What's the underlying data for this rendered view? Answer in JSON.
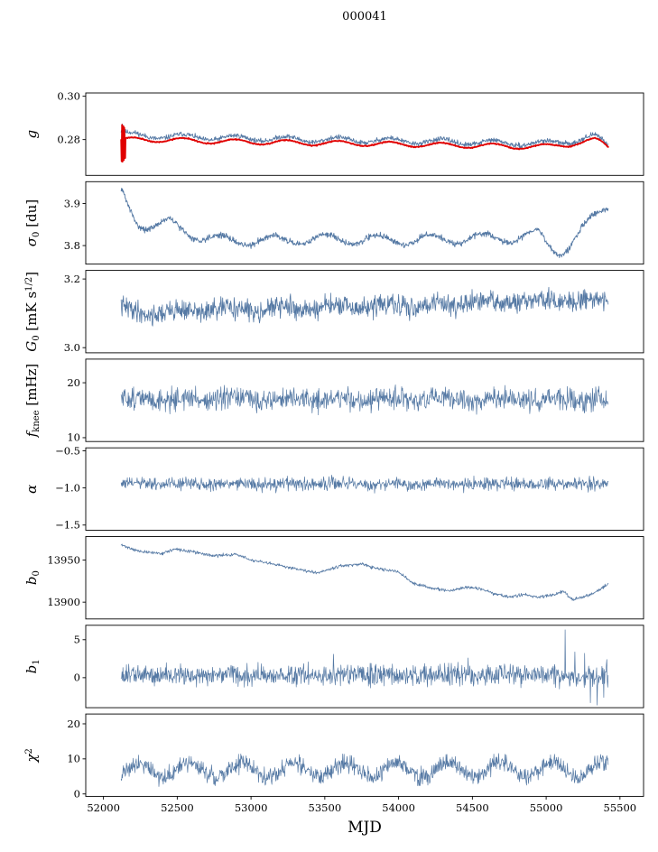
{
  "chart_data": {
    "type": "line",
    "title": "000041",
    "xlabel": "MJD",
    "xlim": [
      51880,
      55660
    ],
    "xticks": [
      52000,
      52500,
      53000,
      53500,
      54000,
      54500,
      55000,
      55500
    ],
    "x_start": 52120,
    "x_end": 55420,
    "samples": 1100,
    "legend": "none",
    "grid": false,
    "colors": {
      "data_line": "#5579a4",
      "overlay_line": "#e00000",
      "axis": "#000000"
    },
    "panels": [
      {
        "id": "g",
        "ylabel_parts": [
          {
            "t": "g",
            "style": "italic"
          }
        ],
        "ylim": [
          0.2635,
          0.3015
        ],
        "yticks": [
          {
            "v": 0.28,
            "label": "0.28"
          },
          {
            "v": 0.3,
            "label": "0.30"
          }
        ],
        "series": [
          {
            "name": "gain",
            "color": "#5579a4",
            "width": 0.9,
            "seed": 11,
            "noise": 0.00055,
            "osc": {
              "amp": 0.0012,
              "period": 350,
              "phase": 0.3
            },
            "base": [
              [
                52120,
                0.2838
              ],
              [
                52160,
                0.2824
              ],
              [
                52250,
                0.2818
              ],
              [
                52400,
                0.2816
              ],
              [
                52600,
                0.2812
              ],
              [
                52800,
                0.2808
              ],
              [
                53000,
                0.2806
              ],
              [
                53200,
                0.2803
              ],
              [
                53400,
                0.28
              ],
              [
                53600,
                0.2799
              ],
              [
                53800,
                0.2797
              ],
              [
                54000,
                0.2794
              ],
              [
                54200,
                0.2792
              ],
              [
                54400,
                0.2789
              ],
              [
                54600,
                0.2786
              ],
              [
                54800,
                0.2783
              ],
              [
                54950,
                0.2782
              ],
              [
                55050,
                0.2785
              ],
              [
                55150,
                0.2793
              ],
              [
                55250,
                0.2805
              ],
              [
                55330,
                0.2812
              ],
              [
                55380,
                0.2795
              ],
              [
                55420,
                0.2775
              ]
            ],
            "spikes": [
              [
                52128,
                0.2872
              ],
              [
                52136,
                0.286
              ]
            ]
          },
          {
            "name": "gain-smoothed",
            "color": "#e00000",
            "width": 1.8,
            "seed": 21,
            "noise": 0.00012,
            "osc": {
              "amp": 0.0011,
              "period": 350,
              "phase": 0.3
            },
            "base": [
              [
                52120,
                0.2798
              ],
              [
                52250,
                0.28
              ],
              [
                52400,
                0.2799
              ],
              [
                52600,
                0.2795
              ],
              [
                52800,
                0.2791
              ],
              [
                53000,
                0.2789
              ],
              [
                53200,
                0.2787
              ],
              [
                53400,
                0.2784
              ],
              [
                53600,
                0.2783
              ],
              [
                53800,
                0.2781
              ],
              [
                54000,
                0.2778
              ],
              [
                54200,
                0.2776
              ],
              [
                54400,
                0.2773
              ],
              [
                54600,
                0.2771
              ],
              [
                54800,
                0.2768
              ],
              [
                54950,
                0.2767
              ],
              [
                55050,
                0.277
              ],
              [
                55150,
                0.2778
              ],
              [
                55250,
                0.279
              ],
              [
                55330,
                0.2798
              ],
              [
                55380,
                0.2782
              ],
              [
                55420,
                0.2764
              ]
            ],
            "spikes": [
              [
                52122,
                0.27
              ],
              [
                52126,
                0.2868
              ],
              [
                52130,
                0.2698
              ],
              [
                52134,
                0.2862
              ],
              [
                52138,
                0.2705
              ],
              [
                52142,
                0.2855
              ],
              [
                52146,
                0.2715
              ]
            ]
          }
        ]
      },
      {
        "id": "sigma0",
        "ylabel_parts": [
          {
            "t": "σ",
            "style": "italic"
          },
          {
            "t": "0",
            "script": "sub"
          },
          {
            "t": " [du]"
          }
        ],
        "ylim": [
          3.756,
          3.952
        ],
        "yticks": [
          {
            "v": 3.8,
            "label": "3.8"
          },
          {
            "v": 3.9,
            "label": "3.9"
          }
        ],
        "series": [
          {
            "name": "sigma0",
            "color": "#5579a4",
            "width": 0.9,
            "seed": 31,
            "noise": 0.0035,
            "osc": {
              "amp": 0.012,
              "period": 355,
              "phase": 2.19
            },
            "base": [
              [
                52120,
                3.928
              ],
              [
                52160,
                3.9
              ],
              [
                52220,
                3.862
              ],
              [
                52300,
                3.846
              ],
              [
                52380,
                3.848
              ],
              [
                52450,
                3.852
              ],
              [
                52530,
                3.84
              ],
              [
                52650,
                3.822
              ],
              [
                52800,
                3.812
              ],
              [
                53000,
                3.812
              ],
              [
                53300,
                3.814
              ],
              [
                53600,
                3.816
              ],
              [
                53900,
                3.813
              ],
              [
                54200,
                3.814
              ],
              [
                54500,
                3.817
              ],
              [
                54800,
                3.819
              ],
              [
                54950,
                3.827
              ],
              [
                55020,
                3.8
              ],
              [
                55080,
                3.786
              ],
              [
                55150,
                3.798
              ],
              [
                55250,
                3.838
              ],
              [
                55340,
                3.872
              ],
              [
                55420,
                3.898
              ]
            ]
          }
        ]
      },
      {
        "id": "noise-G",
        "ylabel_parts": [
          {
            "t": "G",
            "style": "italic"
          },
          {
            "t": "0",
            "script": "sub"
          },
          {
            "t": " [mK s"
          },
          {
            "t": "1/2",
            "script": "sup"
          },
          {
            "t": "]"
          }
        ],
        "ylim": [
          2.985,
          3.225
        ],
        "yticks": [
          {
            "v": 3.0,
            "label": "3.0"
          },
          {
            "v": 3.2,
            "label": "3.2"
          }
        ],
        "series": [
          {
            "name": "white-noise",
            "color": "#5579a4",
            "width": 0.8,
            "seed": 41,
            "noise": 0.015,
            "osc": {
              "amp": 0.006,
              "period": 350,
              "phase": 1.0
            },
            "base": [
              [
                52120,
                3.115
              ],
              [
                52300,
                3.1
              ],
              [
                52500,
                3.105
              ],
              [
                52700,
                3.11
              ],
              [
                53000,
                3.112
              ],
              [
                53300,
                3.115
              ],
              [
                53600,
                3.118
              ],
              [
                53900,
                3.12
              ],
              [
                54200,
                3.125
              ],
              [
                54500,
                3.13
              ],
              [
                54800,
                3.133
              ],
              [
                55100,
                3.137
              ],
              [
                55300,
                3.14
              ],
              [
                55420,
                3.138
              ]
            ]
          }
        ]
      },
      {
        "id": "fknee",
        "ylabel_parts": [
          {
            "t": "f",
            "style": "italic"
          },
          {
            "t": "knee",
            "script": "sub"
          },
          {
            "t": " [mHz]"
          }
        ],
        "ylim": [
          9.3,
          24.3
        ],
        "yticks": [
          {
            "v": 10,
            "label": "10"
          },
          {
            "v": 20,
            "label": "20"
          }
        ],
        "series": [
          {
            "name": "fknee",
            "color": "#5579a4",
            "width": 0.7,
            "seed": 51,
            "noise": 1.0,
            "osc": {
              "amp": 0.25,
              "period": 350,
              "phase": 0.0
            },
            "base": [
              [
                52120,
                17.0
              ],
              [
                55420,
                16.9
              ]
            ]
          }
        ]
      },
      {
        "id": "alpha",
        "ylabel_parts": [
          {
            "t": "α",
            "style": "italic"
          }
        ],
        "ylim": [
          -1.57,
          -0.46
        ],
        "yticks": [
          {
            "v": -1.5,
            "label": "−1.5"
          },
          {
            "v": -1.0,
            "label": "−1.0"
          },
          {
            "v": -0.5,
            "label": "−0.5"
          }
        ],
        "series": [
          {
            "name": "alpha",
            "color": "#5579a4",
            "width": 0.7,
            "seed": 61,
            "noise": 0.042,
            "osc": {
              "amp": 0.008,
              "period": 350,
              "phase": 0.0
            },
            "base": [
              [
                52120,
                -0.945
              ],
              [
                55420,
                -0.95
              ]
            ]
          }
        ]
      },
      {
        "id": "b0",
        "ylabel_parts": [
          {
            "t": "b",
            "style": "italic"
          },
          {
            "t": "0",
            "script": "sub"
          }
        ],
        "ylim": [
          13880,
          13978
        ],
        "yticks": [
          {
            "v": 13900,
            "label": "13900"
          },
          {
            "v": 13950,
            "label": "13950"
          }
        ],
        "series": [
          {
            "name": "baseline-b0",
            "color": "#5579a4",
            "width": 0.8,
            "seed": 71,
            "noise": 0.9,
            "base": [
              [
                52120,
                13968
              ],
              [
                52250,
                13960
              ],
              [
                52400,
                13958
              ],
              [
                52480,
                13963
              ],
              [
                52600,
                13960
              ],
              [
                52750,
                13955
              ],
              [
                52900,
                13957
              ],
              [
                53000,
                13950
              ],
              [
                53150,
                13945
              ],
              [
                53300,
                13940
              ],
              [
                53450,
                13935
              ],
              [
                53600,
                13943
              ],
              [
                53750,
                13945
              ],
              [
                53850,
                13940
              ],
              [
                54000,
                13936
              ],
              [
                54100,
                13922
              ],
              [
                54250,
                13916
              ],
              [
                54350,
                13913
              ],
              [
                54450,
                13918
              ],
              [
                54550,
                13916
              ],
              [
                54650,
                13910
              ],
              [
                54750,
                13906
              ],
              [
                54850,
                13909
              ],
              [
                54950,
                13906
              ],
              [
                55050,
                13909
              ],
              [
                55120,
                13913
              ],
              [
                55180,
                13903
              ],
              [
                55250,
                13906
              ],
              [
                55320,
                13910
              ],
              [
                55420,
                13922
              ]
            ]
          }
        ]
      },
      {
        "id": "b1",
        "ylabel_parts": [
          {
            "t": "b",
            "style": "italic"
          },
          {
            "t": "1",
            "script": "sub"
          }
        ],
        "ylim": [
          -3.95,
          6.9
        ],
        "yticks": [
          {
            "v": 0,
            "label": "0"
          },
          {
            "v": 5,
            "label": "5"
          }
        ],
        "series": [
          {
            "name": "baseline-b1",
            "color": "#5579a4",
            "width": 0.7,
            "seed": 81,
            "noise": 0.68,
            "base": [
              [
                52120,
                0.35
              ],
              [
                55420,
                0.3
              ]
            ],
            "spikes": [
              [
                53558,
                3.1
              ],
              [
                54470,
                2.6
              ],
              [
                55128,
                6.3
              ],
              [
                55195,
                3.4
              ],
              [
                55262,
                3.2
              ],
              [
                55300,
                -3.3
              ],
              [
                55345,
                -3.6
              ],
              [
                55390,
                -2.6
              ],
              [
                55410,
                2.4
              ]
            ]
          }
        ]
      },
      {
        "id": "chi2",
        "ylabel_parts": [
          {
            "t": "χ",
            "style": "italic"
          },
          {
            "t": "2",
            "script": "sup"
          }
        ],
        "ylim": [
          -0.7,
          22.8
        ],
        "yticks": [
          {
            "v": 0,
            "label": "0"
          },
          {
            "v": 10,
            "label": "10"
          },
          {
            "v": 20,
            "label": "20"
          }
        ],
        "series": [
          {
            "name": "chi-square",
            "color": "#5579a4",
            "width": 0.7,
            "seed": 91,
            "noise": 1.25,
            "osc": {
              "amp": 2.1,
              "period": 350,
              "phase": -0.58
            },
            "base": [
              [
                52120,
                6.8
              ],
              [
                55420,
                7.0
              ]
            ]
          }
        ]
      }
    ]
  }
}
